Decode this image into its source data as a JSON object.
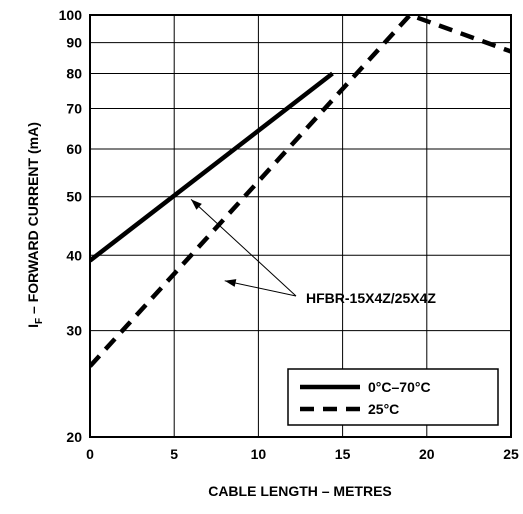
{
  "chart_data": {
    "type": "line",
    "xlabel": "CABLE LENGTH – METRES",
    "ylabel": {
      "prefix": "I",
      "subscript": "F",
      "rest": " – FORWARD CURRENT (mA)"
    },
    "xlim": [
      0,
      25
    ],
    "ylim": [
      20,
      100
    ],
    "yscale": "log",
    "grid": true,
    "x_ticks": [
      0,
      5,
      10,
      15,
      20,
      25
    ],
    "y_ticks": [
      20,
      30,
      40,
      50,
      60,
      70,
      80,
      90,
      100
    ],
    "series": [
      {
        "name": "0°C–70°C",
        "style": "solid",
        "x": [
          0,
          14.4
        ],
        "y": [
          39.2,
          80
        ]
      },
      {
        "name": "25°C",
        "style": "dashed",
        "x": [
          0,
          19,
          25
        ],
        "y": [
          26.2,
          100,
          87
        ]
      }
    ],
    "annotations": [
      {
        "text": "HFBR-15X4Z/25X4Z",
        "points_to": [
          [
            6,
            49.5
          ],
          [
            8,
            36.3
          ]
        ]
      }
    ],
    "legend": {
      "position": "bottom-right",
      "entries": [
        "0°C–70°C",
        "25°C"
      ]
    },
    "colors": {
      "line": "#000000",
      "grid": "#000000",
      "background": "#ffffff"
    }
  }
}
